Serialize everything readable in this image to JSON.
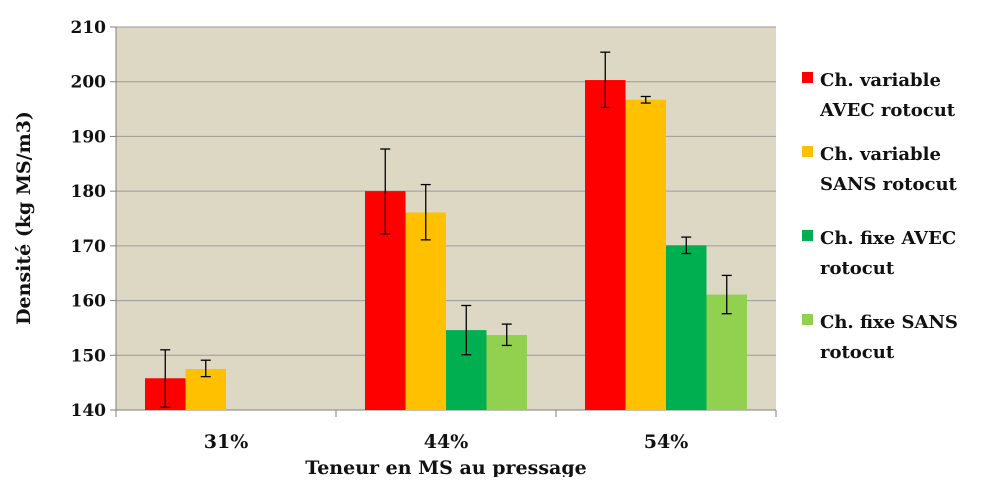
{
  "chart_data": {
    "type": "bar",
    "title": "",
    "xlabel": "Teneur en MS au pressage",
    "ylabel": "Densité (kg MS/m3)",
    "ylim": [
      140,
      210
    ],
    "yticks": [
      140,
      150,
      160,
      170,
      180,
      190,
      200,
      210
    ],
    "grid": true,
    "legend_position": "right",
    "plot_background": "#ddd8c4",
    "categories": [
      "31%",
      "44%",
      "54%"
    ],
    "series": [
      {
        "name": "Ch. variable AVEC rotocut",
        "legend_lines": [
          "Ch. variable",
          "AVEC rotocut"
        ],
        "color": "#ff0000",
        "values": [
          145.8,
          180.0,
          200.3
        ],
        "err_low": [
          140.5,
          172.2,
          195.3
        ],
        "err_high": [
          151.0,
          187.7,
          205.4
        ]
      },
      {
        "name": "Ch. variable SANS rotocut",
        "legend_lines": [
          "Ch. variable",
          "SANS rotocut"
        ],
        "color": "#ffc000",
        "values": [
          147.5,
          176.1,
          196.7
        ],
        "err_low": [
          146.1,
          171.1,
          196.1
        ],
        "err_high": [
          149.1,
          181.2,
          197.3
        ]
      },
      {
        "name": "Ch. fixe AVEC rotocut",
        "legend_lines": [
          "Ch. fixe AVEC",
          "rotocut"
        ],
        "color": "#00b050",
        "values": [
          null,
          154.6,
          170.1
        ],
        "err_low": [
          null,
          150.1,
          168.6
        ],
        "err_high": [
          null,
          159.1,
          171.6
        ]
      },
      {
        "name": "Ch. fixe SANS rotocut",
        "legend_lines": [
          "Ch. fixe SANS",
          "rotocut"
        ],
        "color": "#92d050",
        "values": [
          null,
          153.7,
          161.1
        ],
        "err_low": [
          null,
          151.8,
          157.6
        ],
        "err_high": [
          null,
          155.7,
          164.6
        ]
      }
    ]
  }
}
